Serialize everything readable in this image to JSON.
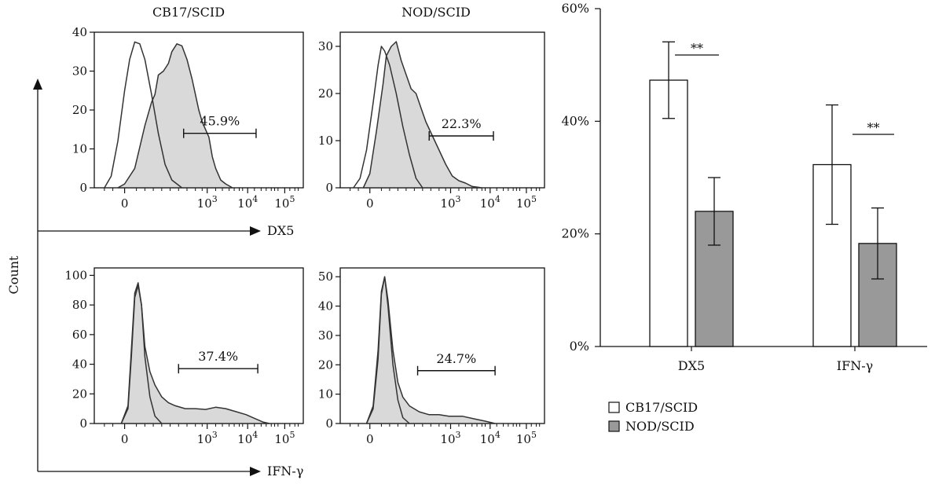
{
  "panels": {
    "col_titles": [
      "CB17/SCID",
      "NOD/SCID"
    ],
    "y_axis_label": "Count",
    "x_axis_labels": [
      "DX5",
      "IFN-γ"
    ],
    "x_tick_labels": [
      "0",
      "10",
      "10",
      "10"
    ],
    "x_tick_exponents": [
      "",
      "3",
      "4",
      "5"
    ]
  },
  "chart_data": [
    {
      "type": "histogram",
      "panel": "top-left",
      "column": "CB17/SCID",
      "row_marker": "DX5",
      "y_ticks": [
        0,
        10,
        20,
        30,
        40
      ],
      "ylim": [
        0,
        40
      ],
      "gate_label": "45.9%",
      "unfilled_curve": [
        [
          -0.6,
          0
        ],
        [
          -0.4,
          3
        ],
        [
          -0.2,
          12
        ],
        [
          0,
          25
        ],
        [
          0.15,
          33
        ],
        [
          0.3,
          37.5
        ],
        [
          0.45,
          37
        ],
        [
          0.6,
          33
        ],
        [
          0.8,
          24
        ],
        [
          1.0,
          14
        ],
        [
          1.2,
          6
        ],
        [
          1.4,
          2
        ],
        [
          1.7,
          0
        ]
      ],
      "filled_curve": [
        [
          -0.2,
          0
        ],
        [
          0,
          1
        ],
        [
          0.3,
          5
        ],
        [
          0.6,
          16
        ],
        [
          0.8,
          22
        ],
        [
          0.9,
          24
        ],
        [
          1.0,
          29
        ],
        [
          1.15,
          30
        ],
        [
          1.3,
          32
        ],
        [
          1.4,
          35
        ],
        [
          1.55,
          37
        ],
        [
          1.7,
          36.5
        ],
        [
          1.85,
          33
        ],
        [
          2.0,
          28
        ],
        [
          2.1,
          24
        ],
        [
          2.2,
          20
        ],
        [
          2.3,
          17
        ],
        [
          2.4,
          15
        ],
        [
          2.5,
          13
        ],
        [
          2.6,
          8
        ],
        [
          2.7,
          5
        ],
        [
          2.85,
          2
        ],
        [
          3.0,
          1
        ],
        [
          3.2,
          0
        ]
      ],
      "gate_range": [
        1.75,
        3.9
      ],
      "gate_y": 14
    },
    {
      "type": "histogram",
      "panel": "top-right",
      "column": "NOD/SCID",
      "row_marker": "DX5",
      "y_ticks": [
        0,
        10,
        20,
        30
      ],
      "ylim": [
        0,
        33
      ],
      "gate_label": "22.3%",
      "unfilled_curve": [
        [
          -0.5,
          0
        ],
        [
          -0.3,
          2
        ],
        [
          -0.1,
          8
        ],
        [
          0.1,
          18
        ],
        [
          0.25,
          26
        ],
        [
          0.35,
          30
        ],
        [
          0.45,
          29
        ],
        [
          0.6,
          26
        ],
        [
          0.8,
          20
        ],
        [
          1.0,
          13
        ],
        [
          1.2,
          7
        ],
        [
          1.4,
          2
        ],
        [
          1.6,
          0
        ]
      ],
      "filled_curve": [
        [
          -0.2,
          0
        ],
        [
          0,
          3
        ],
        [
          0.2,
          12
        ],
        [
          0.4,
          22
        ],
        [
          0.5,
          28
        ],
        [
          0.65,
          30
        ],
        [
          0.8,
          31
        ],
        [
          0.95,
          27
        ],
        [
          1.1,
          24
        ],
        [
          1.25,
          21
        ],
        [
          1.4,
          20
        ],
        [
          1.55,
          17
        ],
        [
          1.7,
          14
        ],
        [
          1.9,
          11
        ],
        [
          2.1,
          8
        ],
        [
          2.3,
          5
        ],
        [
          2.5,
          2.5
        ],
        [
          2.7,
          1.5
        ],
        [
          2.9,
          1
        ],
        [
          3.1,
          0.3
        ],
        [
          3.4,
          0
        ]
      ],
      "gate_range": [
        1.8,
        3.75
      ],
      "gate_y": 11
    },
    {
      "type": "histogram",
      "panel": "bottom-left",
      "column": "CB17/SCID",
      "row_marker": "IFN-γ",
      "y_ticks": [
        0,
        20,
        40,
        60,
        80,
        100
      ],
      "ylim": [
        0,
        105
      ],
      "gate_label": "37.4%",
      "unfilled_curve": [
        [
          -0.1,
          0
        ],
        [
          0.1,
          12
        ],
        [
          0.2,
          50
        ],
        [
          0.3,
          88
        ],
        [
          0.4,
          95
        ],
        [
          0.5,
          80
        ],
        [
          0.6,
          45
        ],
        [
          0.75,
          18
        ],
        [
          0.9,
          5
        ],
        [
          1.1,
          0
        ]
      ],
      "filled_curve": [
        [
          -0.1,
          0
        ],
        [
          0.1,
          10
        ],
        [
          0.2,
          45
        ],
        [
          0.3,
          85
        ],
        [
          0.4,
          93
        ],
        [
          0.5,
          80
        ],
        [
          0.6,
          52
        ],
        [
          0.75,
          35
        ],
        [
          0.9,
          26
        ],
        [
          1.1,
          18
        ],
        [
          1.3,
          14
        ],
        [
          1.5,
          12
        ],
        [
          1.8,
          10
        ],
        [
          2.1,
          10
        ],
        [
          2.4,
          9.5
        ],
        [
          2.7,
          11
        ],
        [
          3.0,
          10
        ],
        [
          3.3,
          8
        ],
        [
          3.6,
          6
        ],
        [
          3.9,
          3
        ],
        [
          4.1,
          1
        ],
        [
          4.3,
          0
        ]
      ],
      "gate_range": [
        1.6,
        3.95
      ],
      "gate_y": 37
    },
    {
      "type": "histogram",
      "panel": "bottom-right",
      "column": "NOD/SCID",
      "row_marker": "IFN-γ",
      "y_ticks": [
        0,
        10,
        20,
        30,
        40,
        50
      ],
      "ylim": [
        0,
        53
      ],
      "gate_label": "24.7%",
      "unfilled_curve": [
        [
          -0.1,
          0
        ],
        [
          0.1,
          6
        ],
        [
          0.25,
          25
        ],
        [
          0.35,
          45
        ],
        [
          0.45,
          50
        ],
        [
          0.55,
          40
        ],
        [
          0.7,
          20
        ],
        [
          0.85,
          8
        ],
        [
          1.0,
          2
        ],
        [
          1.2,
          0
        ]
      ],
      "filled_curve": [
        [
          -0.1,
          0
        ],
        [
          0.1,
          5
        ],
        [
          0.25,
          22
        ],
        [
          0.35,
          44
        ],
        [
          0.45,
          50
        ],
        [
          0.55,
          42
        ],
        [
          0.7,
          25
        ],
        [
          0.85,
          14
        ],
        [
          1.0,
          9
        ],
        [
          1.2,
          6
        ],
        [
          1.5,
          4
        ],
        [
          1.8,
          3
        ],
        [
          2.1,
          3
        ],
        [
          2.4,
          2.5
        ],
        [
          2.8,
          2.5
        ],
        [
          3.2,
          1.5
        ],
        [
          3.5,
          0.8
        ],
        [
          3.8,
          0
        ]
      ],
      "gate_range": [
        1.45,
        3.8
      ],
      "gate_y": 18
    },
    {
      "type": "bar",
      "panel": "summary",
      "categories": [
        "DX5",
        "IFN-γ"
      ],
      "y_ticks": [
        "0%",
        "20%",
        "40%",
        "60%"
      ],
      "ylim": [
        0,
        60
      ],
      "legend_position": "bottom-left",
      "series": [
        {
          "name": "CB17/SCID",
          "color": "#ffffff",
          "values": [
            47.3,
            32.3
          ],
          "errors": [
            6.8,
            10.6
          ]
        },
        {
          "name": "NOD/SCID",
          "color": "#999999",
          "values": [
            24.0,
            18.3
          ],
          "errors": [
            6.0,
            6.3
          ]
        }
      ],
      "significance": [
        "**",
        "**"
      ]
    }
  ]
}
